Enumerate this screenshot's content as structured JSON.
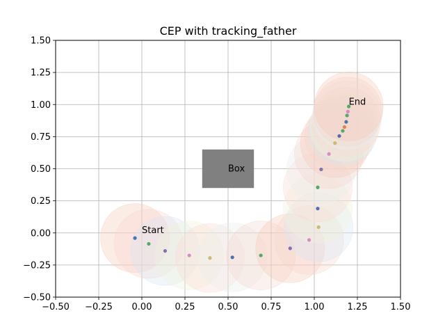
{
  "chart_data": {
    "type": "scatter",
    "title": "CEP with tracking_father",
    "xlabel": "",
    "ylabel": "",
    "xlim": [
      -0.5,
      1.5
    ],
    "ylim": [
      -0.5,
      1.5
    ],
    "xticks": [
      "−0.50",
      "−0.25",
      "0.00",
      "0.25",
      "0.50",
      "0.75",
      "1.00",
      "1.25",
      "1.50"
    ],
    "yticks": [
      "−0.50",
      "−0.25",
      "0.00",
      "0.25",
      "0.50",
      "0.75",
      "1.00",
      "1.25",
      "1.50"
    ],
    "grid": true,
    "box": {
      "x0": 0.35,
      "x1": 0.65,
      "y0": 0.35,
      "y1": 0.65,
      "label": "Box",
      "color": "#808080"
    },
    "annotations": [
      {
        "text": "Start",
        "x": 0.0,
        "y": 0.0
      },
      {
        "text": "End",
        "x": 1.2,
        "y": 1.0
      }
    ],
    "cep_radius": 0.2,
    "points": [
      {
        "x": -0.04,
        "y": -0.04,
        "color": "#4c72b0"
      },
      {
        "x": 0.04,
        "y": -0.085,
        "color": "#55a868"
      },
      {
        "x": 0.135,
        "y": -0.14,
        "color": "#8172b2"
      },
      {
        "x": 0.275,
        "y": -0.175,
        "color": "#da8bc3"
      },
      {
        "x": 0.395,
        "y": -0.195,
        "color": "#ccb974"
      },
      {
        "x": 0.525,
        "y": -0.19,
        "color": "#4c72b0"
      },
      {
        "x": 0.69,
        "y": -0.175,
        "color": "#55a868"
      },
      {
        "x": 0.86,
        "y": -0.12,
        "color": "#8172b2"
      },
      {
        "x": 0.97,
        "y": -0.055,
        "color": "#da8bc3"
      },
      {
        "x": 1.025,
        "y": 0.045,
        "color": "#ccb974"
      },
      {
        "x": 1.02,
        "y": 0.19,
        "color": "#4c72b0"
      },
      {
        "x": 1.02,
        "y": 0.355,
        "color": "#55a868"
      },
      {
        "x": 1.04,
        "y": 0.495,
        "color": "#8172b2"
      },
      {
        "x": 1.085,
        "y": 0.615,
        "color": "#da8bc3"
      },
      {
        "x": 1.12,
        "y": 0.7,
        "color": "#ccb974"
      },
      {
        "x": 1.145,
        "y": 0.755,
        "color": "#4c72b0"
      },
      {
        "x": 1.165,
        "y": 0.795,
        "color": "#55a868"
      },
      {
        "x": 1.175,
        "y": 0.825,
        "color": "#dd8452"
      },
      {
        "x": 1.185,
        "y": 0.865,
        "color": "#4c72b0"
      },
      {
        "x": 1.19,
        "y": 0.915,
        "color": "#55a868"
      },
      {
        "x": 1.195,
        "y": 0.945,
        "color": "#da8bc3"
      },
      {
        "x": 1.2,
        "y": 0.985,
        "color": "#55a868"
      }
    ],
    "circle_colors": [
      "#f6c9b8",
      "#f7d6cc",
      "#d6e6f3",
      "#eef4d9",
      "#fbd9d3",
      "#e9efea",
      "#f3d6cf"
    ]
  }
}
